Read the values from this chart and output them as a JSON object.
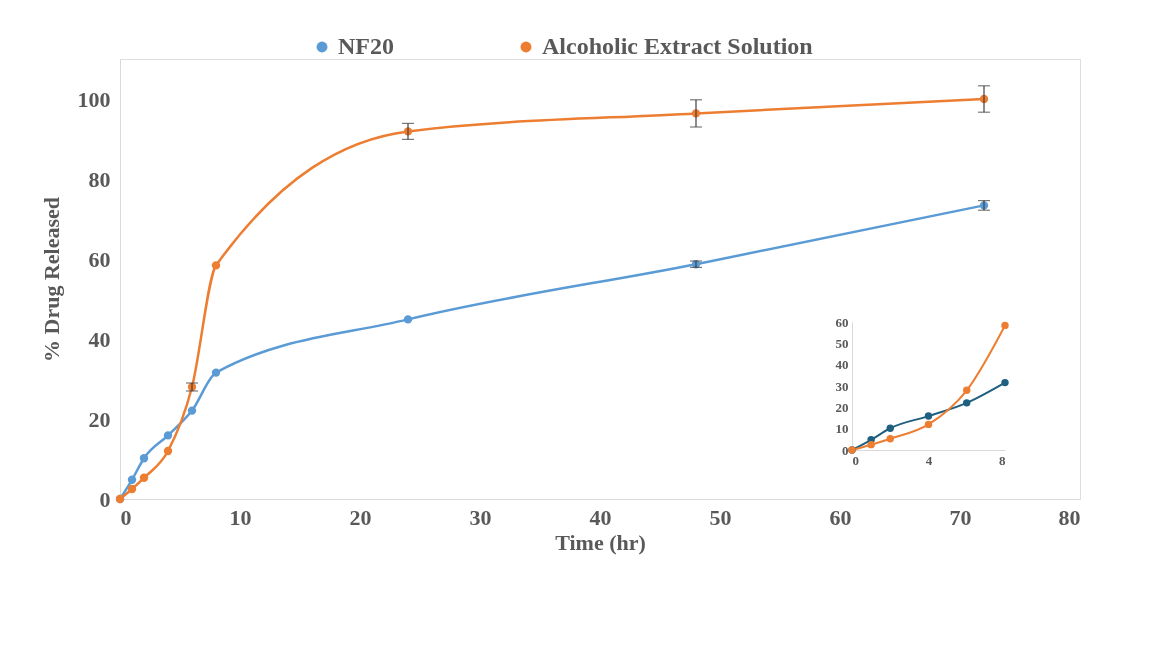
{
  "chart_data": [
    {
      "type": "line",
      "xlabel": "Time (hr)",
      "ylabel": "% Drug Released",
      "xlim": [
        0,
        80
      ],
      "xticks": [
        0,
        10,
        20,
        30,
        40,
        50,
        60,
        70,
        80
      ],
      "ylim": [
        0,
        110
      ],
      "yticks": [
        0,
        20,
        40,
        60,
        80,
        100
      ],
      "grid": false,
      "legend": "top",
      "marker": "circle",
      "line_style": "solid",
      "x": [
        0,
        1,
        2,
        4,
        6,
        8,
        24,
        48,
        72
      ],
      "series": [
        {
          "name": "NF20",
          "color": "#5b9bd5",
          "values": [
            0,
            4.8,
            10.2,
            15.9,
            22.1,
            31.6,
            44.9,
            58.7,
            73.4
          ],
          "errors": [
            null,
            null,
            null,
            null,
            null,
            null,
            null,
            0.8,
            1.2
          ]
        },
        {
          "name": "Alcoholic Extract Solution",
          "color": "#ed7d31",
          "values": [
            0,
            2.5,
            5.3,
            12,
            28,
            58.4,
            91.9,
            96.4,
            100
          ],
          "errors": [
            null,
            null,
            null,
            null,
            1,
            null,
            2,
            3.4,
            3.3
          ]
        }
      ]
    },
    {
      "type": "line",
      "xlim": [
        0,
        8
      ],
      "xticks": [
        0,
        4,
        8
      ],
      "ylim": [
        0,
        60
      ],
      "yticks": [
        0,
        10,
        20,
        30,
        40,
        50,
        60
      ],
      "grid": false,
      "marker": "circle",
      "x": [
        0,
        1,
        2,
        4,
        6,
        8
      ],
      "series": [
        {
          "color": "#1f5f7f",
          "values": [
            0,
            4.8,
            10.2,
            15.9,
            22.1,
            31.6
          ]
        },
        {
          "color": "#ed7d31",
          "values": [
            0,
            2.5,
            5.3,
            12,
            28,
            58.4
          ]
        }
      ]
    }
  ]
}
